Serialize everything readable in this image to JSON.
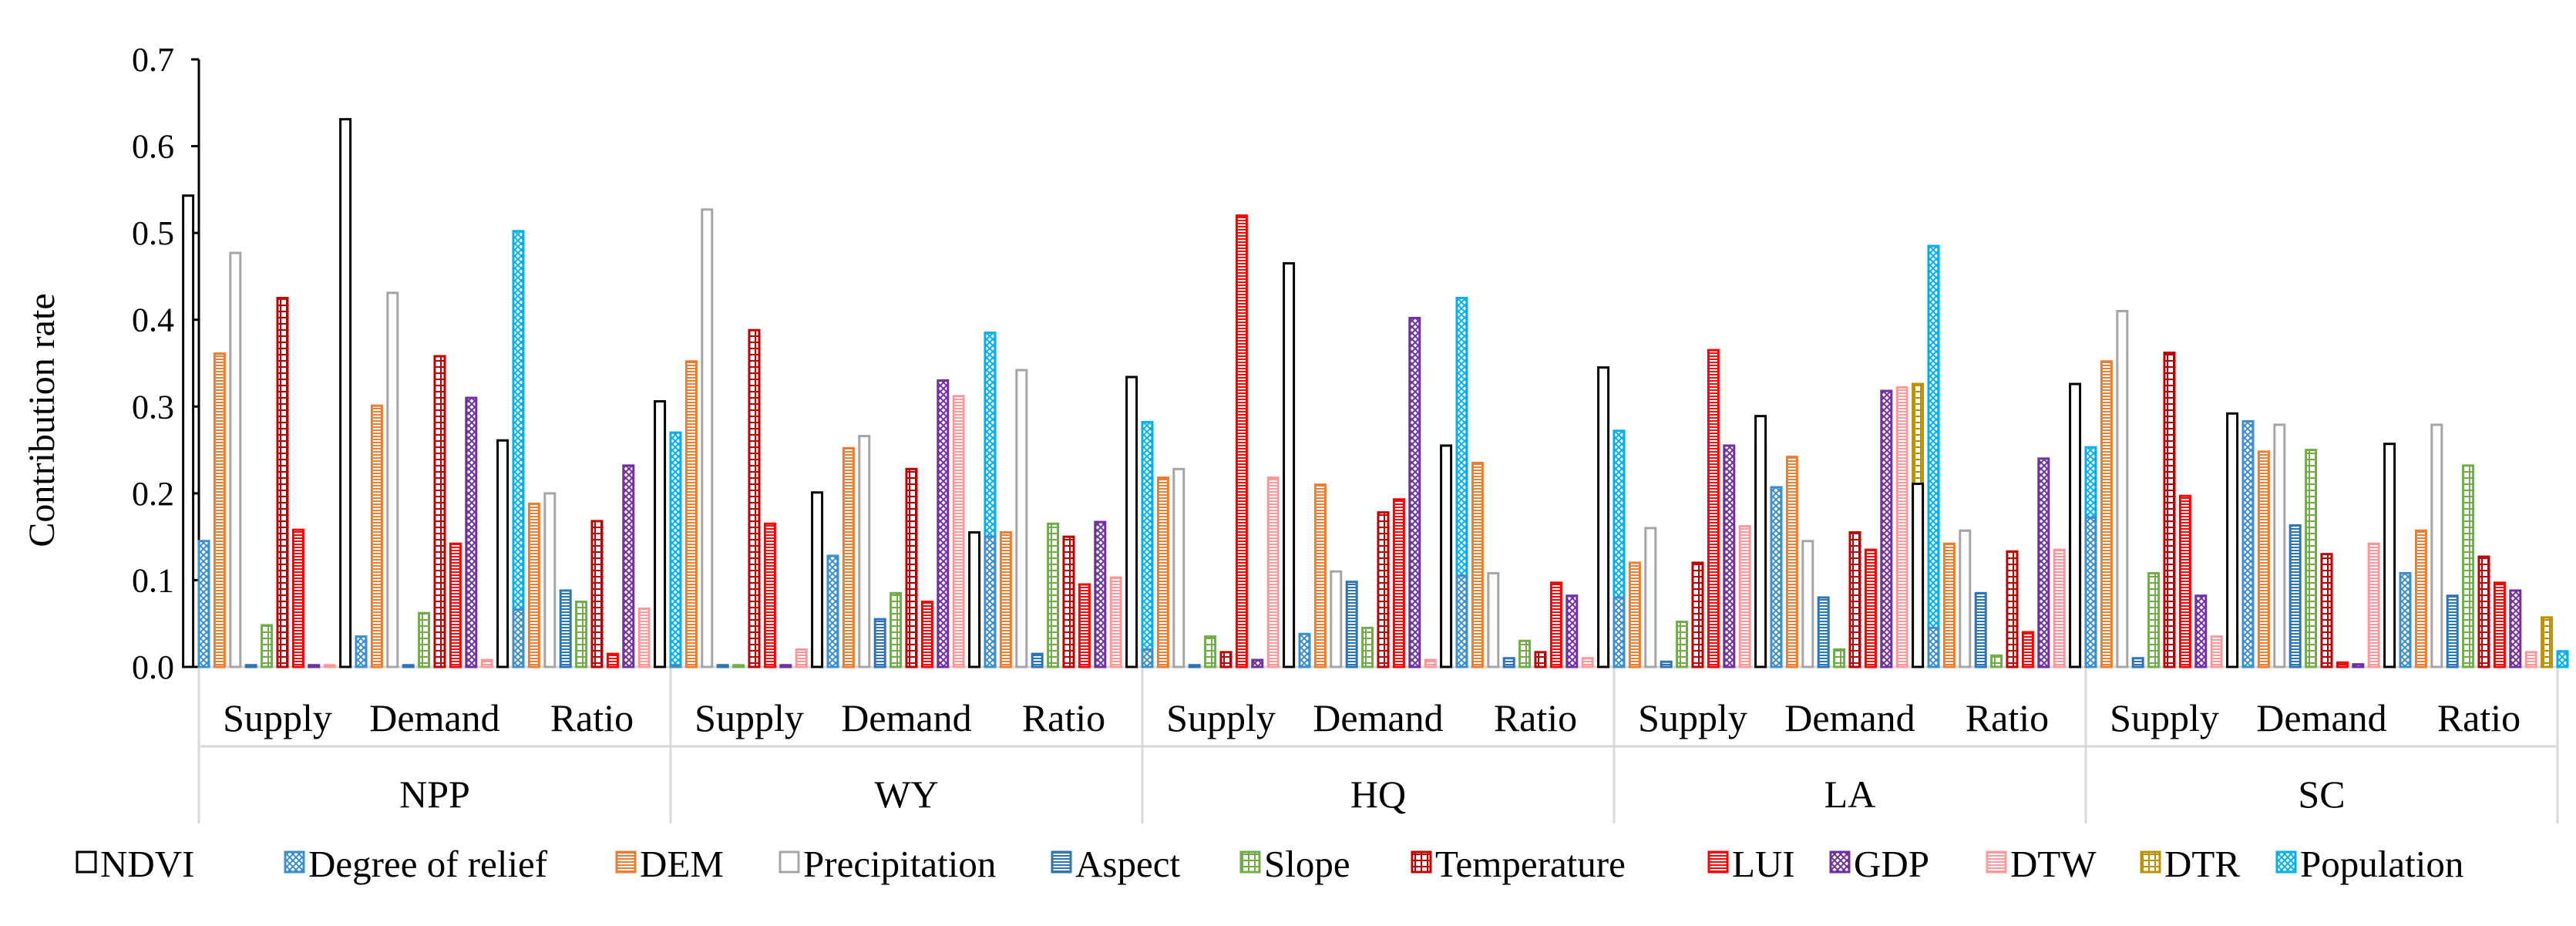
{
  "chart_data": {
    "type": "bar",
    "ylabel": "Contribution rate",
    "ylim": [
      0,
      0.7
    ],
    "yticks": [
      "0.0",
      "0.1",
      "0.2",
      "0.3",
      "0.4",
      "0.5",
      "0.6",
      "0.7"
    ],
    "groups": [
      {
        "label": "NPP",
        "categories": [
          "Supply",
          "Demand",
          "Ratio"
        ]
      },
      {
        "label": "WY",
        "categories": [
          "Supply",
          "Demand",
          "Ratio"
        ]
      },
      {
        "label": "HQ",
        "categories": [
          "Supply",
          "Demand",
          "Ratio"
        ]
      },
      {
        "label": "LA",
        "categories": [
          "Supply",
          "Demand",
          "Ratio"
        ]
      },
      {
        "label": "SC",
        "categories": [
          "Supply",
          "Demand",
          "Ratio"
        ]
      }
    ],
    "series": [
      {
        "name": "NDVI",
        "color": "#000000",
        "pattern": "none",
        "values": [
          0.543,
          0.631,
          0.261,
          0.306,
          0.201,
          0.155,
          0.334,
          0.465,
          0.255,
          0.345,
          0.289,
          0.211,
          0.326,
          0.292,
          0.257
        ]
      },
      {
        "name": "Degree of relief",
        "color": "#3a8fcd",
        "pattern": "diag",
        "values": [
          0.145,
          0.035,
          0.066,
          0.002,
          0.128,
          0.15,
          0.02,
          0.038,
          0.105,
          0.08,
          0.207,
          0.045,
          0.172,
          0.283,
          0.108
        ]
      },
      {
        "name": "DEM",
        "color": "#ed7d31",
        "pattern": "hlines",
        "values": [
          0.361,
          0.301,
          0.188,
          0.352,
          0.252,
          0.155,
          0.218,
          0.21,
          0.235,
          0.12,
          0.242,
          0.142,
          0.352,
          0.248,
          0.157
        ]
      },
      {
        "name": "Precipitation",
        "color": "#a5a5a5",
        "pattern": "none",
        "values": [
          0.477,
          0.431,
          0.2,
          0.527,
          0.266,
          0.342,
          0.228,
          0.11,
          0.108,
          0.16,
          0.145,
          0.157,
          0.41,
          0.279,
          0.279
        ]
      },
      {
        "name": "Aspect",
        "color": "#2e75b6",
        "pattern": "hlines",
        "values": [
          0.002,
          0.002,
          0.088,
          0.002,
          0.055,
          0.015,
          0.002,
          0.098,
          0.01,
          0.006,
          0.08,
          0.085,
          0.01,
          0.163,
          0.082
        ]
      },
      {
        "name": "Slope",
        "color": "#70ad47",
        "pattern": "grid",
        "values": [
          0.048,
          0.062,
          0.075,
          0.002,
          0.085,
          0.165,
          0.035,
          0.045,
          0.03,
          0.052,
          0.02,
          0.013,
          0.108,
          0.25,
          0.232
        ]
      },
      {
        "name": "Temperature",
        "color": "#c00000",
        "pattern": "grid",
        "values": [
          0.425,
          0.358,
          0.168,
          0.388,
          0.228,
          0.15,
          0.017,
          0.178,
          0.017,
          0.12,
          0.155,
          0.133,
          0.362,
          0.13,
          0.127
        ]
      },
      {
        "name": "LUI",
        "color": "#ff0000",
        "pattern": "hlines",
        "values": [
          0.158,
          0.142,
          0.015,
          0.165,
          0.075,
          0.095,
          0.52,
          0.193,
          0.097,
          0.365,
          0.135,
          0.04,
          0.197,
          0.005,
          0.097
        ]
      },
      {
        "name": "GDP",
        "color": "#7030a0",
        "pattern": "diag",
        "values": [
          0.002,
          0.31,
          0.232,
          0.002,
          0.33,
          0.167,
          0.008,
          0.402,
          0.082,
          0.255,
          0.318,
          0.24,
          0.082,
          0.003,
          0.088
        ]
      },
      {
        "name": "DTW",
        "color": "#ff9999",
        "pattern": "hlines",
        "values": [
          0.002,
          0.008,
          0.067,
          0.02,
          0.312,
          0.103,
          0.218,
          0.008,
          0.01,
          0.162,
          0.322,
          0.135,
          0.035,
          0.142,
          0.017
        ]
      },
      {
        "name": "DTR",
        "color": "#bf9000",
        "pattern": "grid",
        "values": [
          0.01,
          0.04,
          0.018,
          0.022,
          0.064,
          0.01,
          0.095,
          0.122,
          0.02,
          0.258,
          0.326,
          0.158,
          0.035,
          0.002,
          0.057
        ]
      },
      {
        "name": "Population",
        "color": "#00b0f0",
        "pattern": "diag",
        "values": [
          0.003,
          0.502,
          0.27,
          0.005,
          0.385,
          0.282,
          0.023,
          0.425,
          0.272,
          0.155,
          0.485,
          0.253,
          0.035,
          0.008,
          0.018
        ]
      }
    ]
  }
}
